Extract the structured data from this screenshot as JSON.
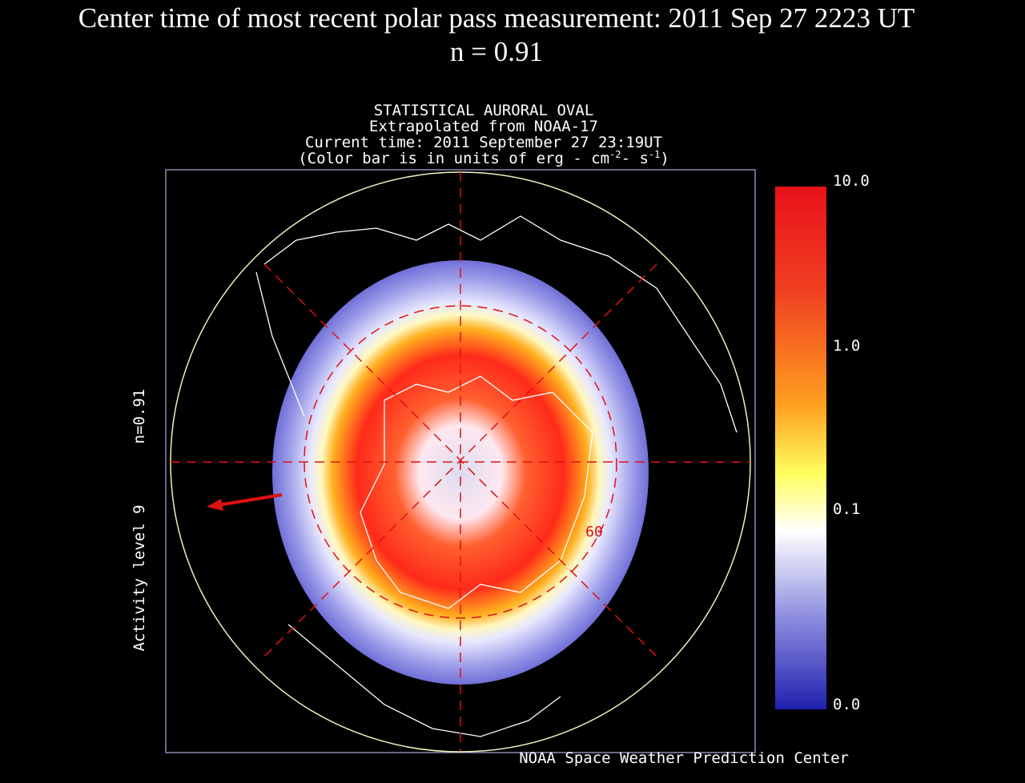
{
  "header": {
    "title": "Center time of most recent polar pass measurement: 2011 Sep 27 2223 UT",
    "subtitle": "n = 0.91"
  },
  "map": {
    "title_lines": [
      "STATISTICAL AURORAL OVAL",
      "Extrapolated from NOAA-17",
      "Current time: 2011 September 27 23:19UT"
    ],
    "units": {
      "prefix": "(Color bar is in units of erg - cm",
      "exp1": "-2",
      "middle": "- s",
      "exp2": "-1",
      "suffix": ")"
    },
    "side_labels": [
      "n=0.91",
      "Activity level 9"
    ],
    "latitude_label": "60"
  },
  "colorbar": {
    "labels": [
      "10.0",
      "1.0",
      "0.1",
      "0.0"
    ]
  },
  "footer": {
    "credit": "NOAA Space Weather Prediction Center"
  }
}
